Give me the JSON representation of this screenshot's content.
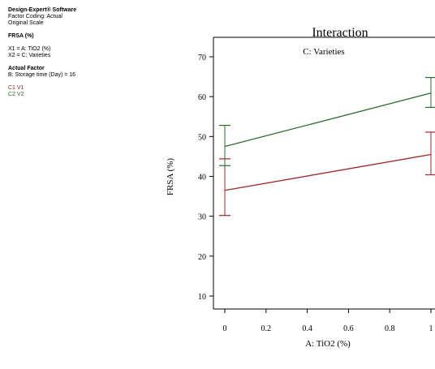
{
  "info_panel": {
    "software": "Design-Expert® Software",
    "factor_coding": "Factor Coding: Actual",
    "scale": "Original Scale",
    "response": "FRSA (%)",
    "x1": "X1 = A: TiO2 (%)",
    "x2": "X2 = C: Varieties",
    "actual_factor_heading": "Actual Factor",
    "actual_factor_value": "B: Storage time (Day) = 16",
    "legend_c1": "C1 V1",
    "legend_c2": "C2 V2"
  },
  "colors": {
    "v1": "#a0282a",
    "v2": "#2e6b2e",
    "axis": "#000000"
  },
  "chart_data": {
    "type": "line",
    "title": "Interaction",
    "subtitle": "C: Varieties",
    "xlabel": "A: TiO2 (%)",
    "ylabel": "FRSA (%)",
    "xlim": [
      -0.05,
      1.05
    ],
    "ylim": [
      4,
      73
    ],
    "x_ticks": [
      0,
      0.2,
      0.4,
      0.6,
      0.8,
      1
    ],
    "x_tick_labels": [
      "0",
      "0.2",
      "0.4",
      "0.6",
      "0.8",
      "1"
    ],
    "y_ticks": [
      10,
      20,
      30,
      40,
      50,
      60,
      70
    ],
    "y_tick_labels": [
      "10",
      "20",
      "30",
      "40",
      "50",
      "60",
      "70"
    ],
    "series": [
      {
        "name": "C1 V1",
        "x": [
          0,
          1
        ],
        "y": [
          36.5,
          45.5
        ],
        "error_low": [
          30.2,
          40.4
        ],
        "error_high": [
          44.4,
          51.1
        ]
      },
      {
        "name": "C2 V2",
        "x": [
          0,
          1
        ],
        "y": [
          47.5,
          60.9
        ],
        "error_low": [
          42.7,
          57.3
        ],
        "error_high": [
          52.8,
          64.8
        ]
      }
    ]
  }
}
